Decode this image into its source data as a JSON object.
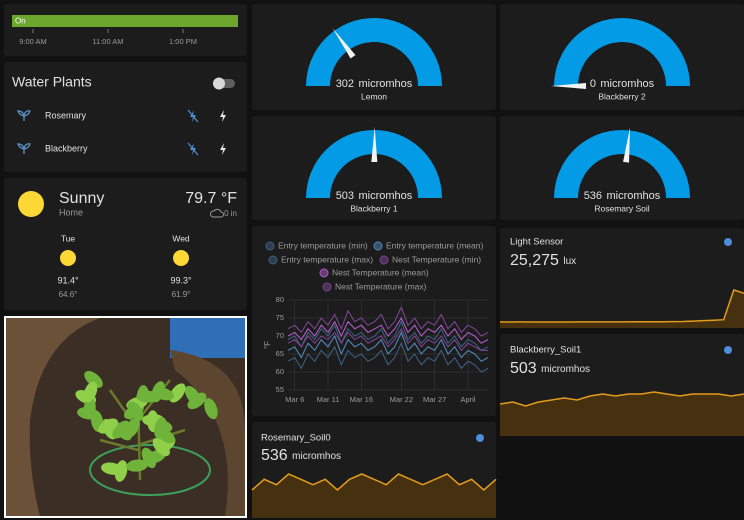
{
  "timeline": {
    "state": "On",
    "ticks": [
      "9:00 AM",
      "11:00 AM",
      "1:00 PM"
    ]
  },
  "water_plants": {
    "title": "Water Plants",
    "items": [
      "Rosemary",
      "Blackberry"
    ]
  },
  "weather": {
    "condition": "Sunny",
    "location": "Home",
    "temperature": "79.7 °F",
    "precipitation": "0 in",
    "forecast": [
      {
        "day": "Tue",
        "high": "91.4°",
        "low": "64.6°"
      },
      {
        "day": "Wed",
        "high": "99.3°",
        "low": "61.9°"
      }
    ]
  },
  "gauges": [
    {
      "value": 302,
      "unit": "micromhos",
      "name": "Lemon",
      "range": [
        0,
        1000
      ]
    },
    {
      "value": 0,
      "unit": "micromhos",
      "name": "Blackberry 2",
      "range": [
        0,
        1000
      ]
    },
    {
      "value": 503,
      "unit": "micromhos",
      "name": "Blackberry 1",
      "range": [
        0,
        1000
      ]
    },
    {
      "value": 536,
      "unit": "micromhos",
      "name": "Rosemary Soil",
      "range": [
        0,
        1000
      ]
    }
  ],
  "chart_data": {
    "type": "line",
    "categories": [
      null,
      "Mar 6",
      null,
      null,
      null,
      null,
      "Mar 11",
      null,
      null,
      null,
      null,
      "Mar 16",
      null,
      null,
      null,
      null,
      null,
      "Mar 22",
      null,
      null,
      null,
      null,
      "Mar 27",
      null,
      null,
      null,
      null,
      "April",
      null,
      null,
      null
    ],
    "series": [
      {
        "name": "Entry temperature (min)",
        "color": "#3d5f80",
        "values": [
          63,
          64,
          61,
          65,
          63,
          66,
          64,
          67,
          62,
          66,
          64,
          65,
          63,
          64,
          66,
          62,
          64,
          68,
          63,
          65,
          62,
          64,
          63,
          66,
          62,
          64,
          61,
          63,
          62,
          60,
          61
        ]
      },
      {
        "name": "Entry temperature (mean)",
        "color": "#4f87b8",
        "values": [
          66,
          67,
          64,
          68,
          66,
          69,
          67,
          70,
          65,
          69,
          67,
          68,
          66,
          67,
          69,
          65,
          67,
          71,
          66,
          68,
          65,
          67,
          66,
          69,
          65,
          67,
          64,
          66,
          65,
          63,
          64
        ]
      },
      {
        "name": "Entry temperature (max)",
        "color": "#3d5f80",
        "values": [
          69,
          70,
          67,
          71,
          69,
          72,
          70,
          73,
          68,
          72,
          70,
          71,
          69,
          70,
          72,
          68,
          70,
          74,
          69,
          71,
          68,
          70,
          69,
          72,
          68,
          70,
          67,
          69,
          68,
          66,
          67
        ]
      },
      {
        "name": "Nest Temperature (min)",
        "color": "#7a4590",
        "values": [
          68,
          69,
          67,
          70,
          68,
          70,
          69,
          71,
          68,
          71,
          69,
          70,
          68,
          69,
          70,
          67,
          69,
          72,
          68,
          70,
          67,
          69,
          68,
          70,
          67,
          69,
          66,
          68,
          67,
          66,
          66
        ]
      },
      {
        "name": "Nest Temperature (mean)",
        "color": "#b05cc8",
        "values": [
          70,
          71,
          69,
          72,
          70,
          73,
          71,
          74,
          70,
          74,
          72,
          73,
          71,
          72,
          73,
          70,
          72,
          75,
          71,
          73,
          70,
          72,
          71,
          73,
          70,
          72,
          69,
          71,
          70,
          68,
          69
        ]
      },
      {
        "name": "Nest Temperature (max)",
        "color": "#7a4590",
        "values": [
          72,
          73,
          71,
          74,
          72,
          75,
          73,
          76,
          72,
          77,
          74,
          75,
          73,
          74,
          76,
          72,
          74,
          78,
          73,
          75,
          72,
          74,
          73,
          76,
          72,
          74,
          71,
          73,
          72,
          70,
          71
        ]
      }
    ],
    "ylim": [
      55,
      80
    ],
    "yticks": [
      55,
      60,
      65,
      70,
      75,
      80
    ],
    "ylabel": "°F",
    "grid": true
  },
  "sensors": [
    {
      "name": "Light Sensor",
      "state": "25,275",
      "unit": "lux",
      "history": [
        1600,
        1500,
        1550,
        1500,
        1480,
        1500,
        1520,
        1500,
        1550,
        1600,
        1580,
        1550,
        1600,
        1620,
        1650,
        1700,
        1750,
        1800,
        1900,
        2200,
        2600,
        3000,
        3400,
        28000,
        25275
      ]
    },
    {
      "name": "Blackberry_Soil1",
      "state": 503,
      "unit": "micromhos",
      "history": [
        498,
        499,
        497,
        499,
        500,
        501,
        500,
        502,
        503,
        502,
        503,
        503,
        504,
        503,
        502,
        503,
        503,
        503,
        502,
        503
      ]
    },
    {
      "name": "Rosemary_Soil0",
      "state": 536,
      "unit": "micromhos",
      "history": [
        534,
        536,
        535,
        537,
        536,
        535,
        536,
        534,
        536,
        537,
        536,
        535,
        537,
        536,
        535,
        536,
        537,
        535,
        536,
        534,
        536
      ]
    }
  ]
}
